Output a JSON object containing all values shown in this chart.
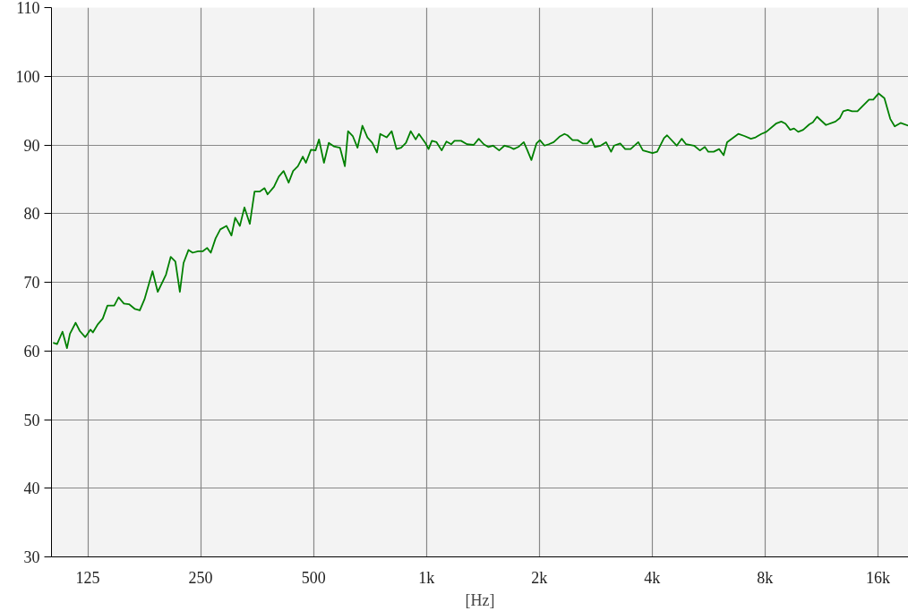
{
  "chart_data": {
    "type": "line",
    "xlabel": "[Hz]",
    "log": "x",
    "grid": true,
    "marker": "none",
    "line_style": "solid",
    "xlim": [
      100,
      19300
    ],
    "ylim": [
      30,
      110
    ],
    "xticks": [
      125,
      250,
      500,
      {
        "value": 1000,
        "label": "1k"
      },
      {
        "value": 2000,
        "label": "2k"
      },
      {
        "value": 4000,
        "label": "4k"
      },
      {
        "value": 8000,
        "label": "8k"
      },
      {
        "value": 16000,
        "label": "16k"
      }
    ],
    "yticks": [
      30,
      40,
      50,
      60,
      70,
      80,
      90,
      100,
      110
    ],
    "series": [
      {
        "color": "#008000",
        "x": [
          101,
          103.5,
          107,
          110,
          112,
          116,
          119,
          123,
          127,
          129,
          133,
          137,
          141,
          147,
          151,
          156,
          161,
          167,
          172,
          177,
          186,
          192,
          202,
          208,
          214,
          220,
          225,
          232,
          238,
          246,
          253,
          260,
          266,
          274,
          282,
          293,
          302,
          309,
          318,
          327,
          338,
          348,
          359,
          370,
          377,
          392,
          404,
          416,
          429,
          441,
          454,
          468,
          477,
          492,
          506,
          517,
          533,
          549,
          566,
          588,
          606,
          618,
          636,
          655,
          675,
          696,
          717,
          738,
          753,
          783,
          808,
          832,
          856,
          882,
          908,
          936,
          955,
          993,
          1013,
          1034,
          1064,
          1098,
          1131,
          1165,
          1188,
          1237,
          1283,
          1337,
          1379,
          1422,
          1462,
          1505,
          1563,
          1615,
          1666,
          1709,
          1758,
          1818,
          1856,
          1905,
          1965,
          2007,
          2065,
          2119,
          2185,
          2264,
          2334,
          2378,
          2453,
          2530,
          2615,
          2684,
          2754,
          2813,
          2916,
          3013,
          3108,
          3165,
          3287,
          3389,
          3504,
          3673,
          3779,
          4008,
          4124,
          4302,
          4383,
          4653,
          4797,
          4925,
          5173,
          5360,
          5528,
          5646,
          5837,
          6033,
          6204,
          6337,
          6788,
          7046,
          7336,
          7547,
          7819,
          8061,
          8555,
          8840,
          9071,
          9337,
          9559,
          9808,
          10110,
          10500,
          10730,
          11010,
          11630,
          12330,
          12660,
          12930,
          13300,
          13650,
          14110,
          15150,
          15550,
          16070,
          16650,
          17260,
          17740,
          18390,
          19300
        ],
        "values": [
          61.2,
          61.0,
          62.8,
          60.4,
          62.5,
          64.1,
          62.9,
          62.0,
          63.1,
          62.7,
          63.9,
          64.7,
          66.6,
          66.6,
          67.8,
          66.9,
          66.8,
          66.1,
          65.9,
          67.5,
          71.6,
          68.6,
          71.1,
          73.7,
          73.0,
          68.6,
          72.8,
          74.7,
          74.3,
          74.5,
          74.5,
          75.0,
          74.3,
          76.4,
          77.7,
          78.2,
          76.8,
          79.4,
          78.2,
          80.9,
          78.5,
          83.2,
          83.2,
          83.7,
          82.8,
          83.9,
          85.4,
          86.2,
          84.5,
          86.2,
          86.9,
          88.3,
          87.4,
          89.3,
          89.2,
          90.8,
          87.4,
          90.3,
          89.8,
          89.6,
          86.9,
          92.0,
          91.3,
          89.6,
          92.8,
          91.1,
          90.3,
          88.9,
          91.6,
          91.1,
          92.0,
          89.4,
          89.6,
          90.3,
          92.0,
          90.8,
          91.6,
          90.3,
          89.4,
          90.6,
          90.4,
          89.2,
          90.5,
          90.1,
          90.6,
          90.6,
          90.1,
          90.0,
          90.9,
          90.1,
          89.7,
          89.9,
          89.2,
          89.9,
          89.7,
          89.4,
          89.7,
          90.4,
          89.3,
          87.8,
          90.2,
          90.7,
          89.9,
          90.1,
          90.4,
          91.2,
          91.6,
          91.4,
          90.7,
          90.7,
          90.2,
          90.2,
          90.9,
          89.7,
          89.9,
          90.4,
          89.0,
          89.9,
          90.2,
          89.4,
          89.4,
          90.4,
          89.2,
          88.8,
          89.0,
          91.0,
          91.4,
          89.9,
          90.9,
          90.1,
          89.9,
          89.2,
          89.7,
          89.0,
          89.0,
          89.4,
          88.5,
          90.4,
          91.6,
          91.3,
          90.9,
          91.1,
          91.6,
          91.9,
          93.1,
          93.4,
          93.1,
          92.2,
          92.4,
          91.9,
          92.2,
          93.0,
          93.3,
          94.1,
          92.9,
          93.4,
          93.9,
          94.9,
          95.1,
          94.9,
          94.9,
          96.6,
          96.6,
          97.5,
          96.8,
          93.8,
          92.7,
          93.2,
          92.8
        ]
      }
    ]
  }
}
